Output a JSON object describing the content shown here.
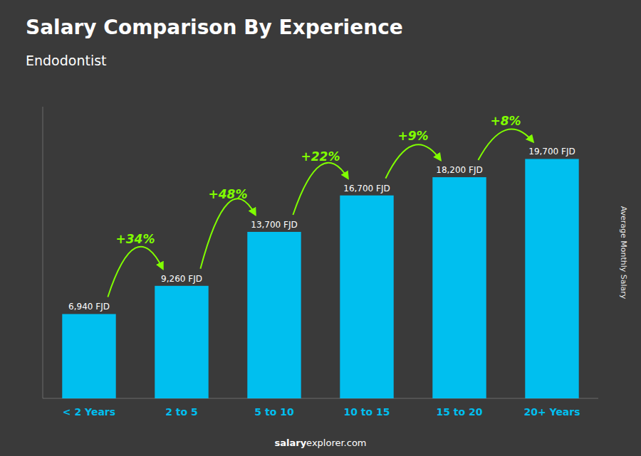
{
  "chart_data": {
    "type": "bar",
    "title": "Salary Comparison By Experience",
    "subtitle": "Endodontist",
    "y_label": "Average Monthly Salary",
    "categories": [
      "< 2 Years",
      "2 to 5",
      "5 to 10",
      "10 to 15",
      "15 to 20",
      "20+ Years"
    ],
    "values": [
      6940,
      9260,
      13700,
      16700,
      18200,
      19700
    ],
    "value_labels": [
      "6,940 FJD",
      "9,260 FJD",
      "13,700 FJD",
      "16,700 FJD",
      "18,200 FJD",
      "19,700 FJD"
    ],
    "data_labels": true,
    "annotations": [
      "+34%",
      "+48%",
      "+22%",
      "+9%",
      "+8%"
    ],
    "footer": [
      "salary",
      "explorer.com"
    ],
    "color": "#00bfef",
    "ylim": [
      0,
      24000
    ],
    "tick_labels": "x",
    "grid": false
  }
}
